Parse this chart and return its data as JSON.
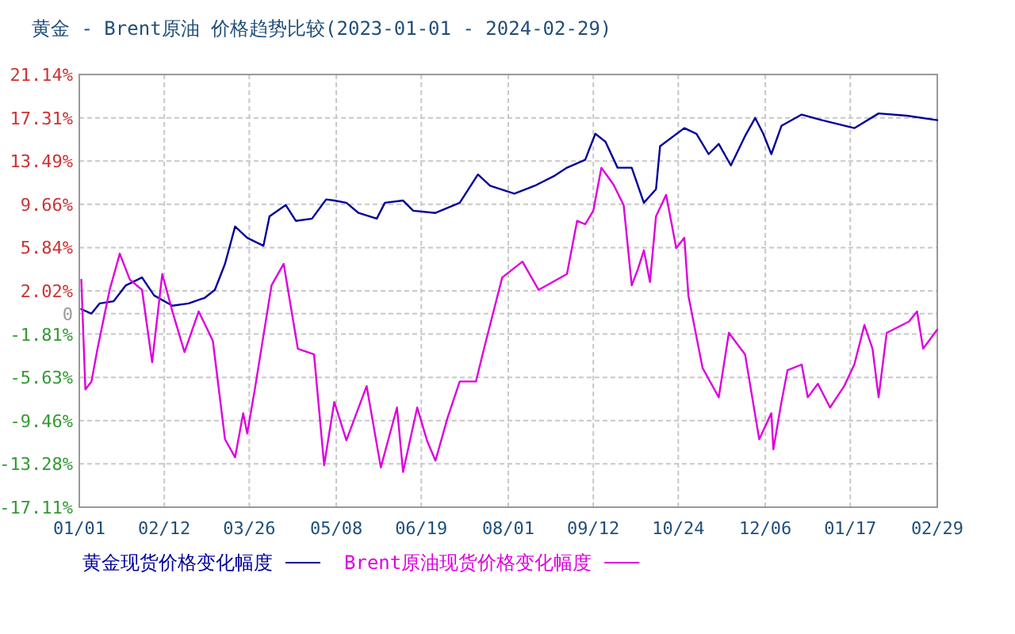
{
  "chart_data": {
    "type": "line",
    "title": "黄金 - Brent原油 价格趋势比较(2023-01-01 - 2024-02-29)",
    "series": [
      {
        "name": "黄金现货价格变化幅度",
        "color": "#000099",
        "x": [
          "2023-01-02",
          "2023-01-07",
          "2023-01-11",
          "2023-01-18",
          "2023-01-24",
          "2023-02-01",
          "2023-02-07",
          "2023-02-16",
          "2023-02-24",
          "2023-03-04",
          "2023-03-09",
          "2023-03-14",
          "2023-03-19",
          "2023-03-25",
          "2023-04-02",
          "2023-04-05",
          "2023-04-13",
          "2023-04-18",
          "2023-04-26",
          "2023-05-03",
          "2023-05-07",
          "2023-05-13",
          "2023-05-19",
          "2023-05-28",
          "2023-06-01",
          "2023-06-10",
          "2023-06-15",
          "2023-06-26",
          "2023-07-08",
          "2023-07-17",
          "2023-07-23",
          "2023-08-04",
          "2023-08-14",
          "2023-08-24",
          "2023-08-30",
          "2023-09-08",
          "2023-09-13",
          "2023-09-18",
          "2023-09-24",
          "2023-10-01",
          "2023-10-07",
          "2023-10-13",
          "2023-10-15",
          "2023-10-27",
          "2023-11-02",
          "2023-11-08",
          "2023-11-13",
          "2023-11-19",
          "2023-11-26",
          "2023-12-01",
          "2023-12-05",
          "2023-12-09",
          "2023-12-14",
          "2023-12-24",
          "2024-01-03",
          "2024-01-19",
          "2024-01-31",
          "2024-02-14",
          "2024-02-29"
        ],
        "values": [
          0.4,
          0,
          0.9,
          1.1,
          2.5,
          3.2,
          1.6,
          0.7,
          0.9,
          1.4,
          2.1,
          4.4,
          7.7,
          6.7,
          6.0,
          8.6,
          9.6,
          8.2,
          8.4,
          10.1,
          10.0,
          9.8,
          8.9,
          8.4,
          9.8,
          10.0,
          9.1,
          8.9,
          9.8,
          12.3,
          11.3,
          10.6,
          11.3,
          12.2,
          12.9,
          13.6,
          15.9,
          15.2,
          12.9,
          12.9,
          9.8,
          11.0,
          14.8,
          16.4,
          15.9,
          14.1,
          15.0,
          13.1,
          15.7,
          17.3,
          15.9,
          14.1,
          16.6,
          17.6,
          17.1,
          16.4,
          17.7,
          17.5,
          17.1
        ]
      },
      {
        "name": "Brent原油现货价格变化幅度",
        "color": "#dd00dd",
        "x": [
          "2023-01-02",
          "2023-01-04",
          "2023-01-07",
          "2023-01-10",
          "2023-01-16",
          "2023-01-21",
          "2023-01-26",
          "2023-02-01",
          "2023-02-06",
          "2023-02-11",
          "2023-02-16",
          "2023-02-22",
          "2023-03-01",
          "2023-03-08",
          "2023-03-14",
          "2023-03-19",
          "2023-03-23",
          "2023-03-25",
          "2023-03-29",
          "2023-04-06",
          "2023-04-12",
          "2023-04-19",
          "2023-04-27",
          "2023-05-02",
          "2023-05-07",
          "2023-05-13",
          "2023-05-23",
          "2023-05-30",
          "2023-06-07",
          "2023-06-10",
          "2023-06-17",
          "2023-06-22",
          "2023-06-26",
          "2023-07-02",
          "2023-07-08",
          "2023-07-16",
          "2023-07-20",
          "2023-07-29",
          "2023-08-08",
          "2023-08-16",
          "2023-08-30",
          "2023-09-04",
          "2023-09-08",
          "2023-09-12",
          "2023-09-16",
          "2023-09-22",
          "2023-09-27",
          "2023-10-01",
          "2023-10-04",
          "2023-10-07",
          "2023-10-10",
          "2023-10-13",
          "2023-10-18",
          "2023-10-23",
          "2023-10-27",
          "2023-10-29",
          "2023-11-05",
          "2023-11-13",
          "2023-11-18",
          "2023-11-26",
          "2023-12-03",
          "2023-12-09",
          "2023-12-10",
          "2023-12-14",
          "2023-12-17",
          "2023-12-24",
          "2023-12-27",
          "2024-01-01",
          "2024-01-07",
          "2024-01-14",
          "2024-01-19",
          "2024-01-24",
          "2024-01-28",
          "2024-01-31",
          "2024-02-04",
          "2024-02-15",
          "2024-02-19",
          "2024-02-22",
          "2024-02-29"
        ],
        "values": [
          3.0,
          -6.7,
          -6.0,
          -3.1,
          2.1,
          5.3,
          3.0,
          2.1,
          -4.3,
          3.5,
          0.2,
          -3.4,
          0.2,
          -2.4,
          -11.1,
          -12.7,
          -8.8,
          -10.6,
          -6.4,
          2.5,
          4.4,
          -3.1,
          -3.6,
          -13.4,
          -7.8,
          -11.2,
          -6.4,
          -13.6,
          -8.3,
          -14.0,
          -8.3,
          -11.3,
          -13.0,
          -9.2,
          -6.0,
          -6.0,
          -3.1,
          3.2,
          4.6,
          2.1,
          3.5,
          8.2,
          7.9,
          9.1,
          12.9,
          11.4,
          9.6,
          2.5,
          3.9,
          5.6,
          2.8,
          8.6,
          10.5,
          5.8,
          6.7,
          1.6,
          -4.8,
          -7.4,
          -1.7,
          -3.6,
          -11.1,
          -8.8,
          -12.0,
          -7.8,
          -5.0,
          -4.5,
          -7.4,
          -6.2,
          -8.3,
          -6.4,
          -4.5,
          -1.0,
          -3.1,
          -7.4,
          -1.7,
          -0.7,
          0.2,
          -3.1,
          -1.4
        ]
      }
    ],
    "xlim": [
      "2023-01-01",
      "2024-02-29"
    ],
    "xticks": [
      {
        "value": "2023-01-01",
        "label": "01/01"
      },
      {
        "value": "2023-02-12",
        "label": "02/12"
      },
      {
        "value": "2023-03-26",
        "label": "03/26"
      },
      {
        "value": "2023-05-08",
        "label": "05/08"
      },
      {
        "value": "2023-06-19",
        "label": "06/19"
      },
      {
        "value": "2023-08-01",
        "label": "08/01"
      },
      {
        "value": "2023-09-12",
        "label": "09/12"
      },
      {
        "value": "2023-10-24",
        "label": "10/24"
      },
      {
        "value": "2023-12-06",
        "label": "12/06"
      },
      {
        "value": "2024-01-17",
        "label": "01/17"
      },
      {
        "value": "2024-02-29",
        "label": "02/29"
      }
    ],
    "ylim": [
      -17.11,
      21.14
    ],
    "yticks": [
      {
        "value": 21.14,
        "label": "21.14%"
      },
      {
        "value": 17.31,
        "label": "17.31%"
      },
      {
        "value": 13.49,
        "label": "13.49%"
      },
      {
        "value": 9.66,
        "label": "9.66%"
      },
      {
        "value": 5.84,
        "label": "5.84%"
      },
      {
        "value": 2.02,
        "label": "2.02%"
      },
      0,
      {
        "value": -1.81,
        "label": "-1.81%"
      },
      {
        "value": -5.63,
        "label": "-5.63%"
      },
      {
        "value": -9.46,
        "label": "-9.46%"
      },
      {
        "value": -13.28,
        "label": "-13.28%"
      },
      {
        "value": -17.11,
        "label": "-17.11%"
      }
    ],
    "grid": true,
    "legend": "bottom"
  }
}
